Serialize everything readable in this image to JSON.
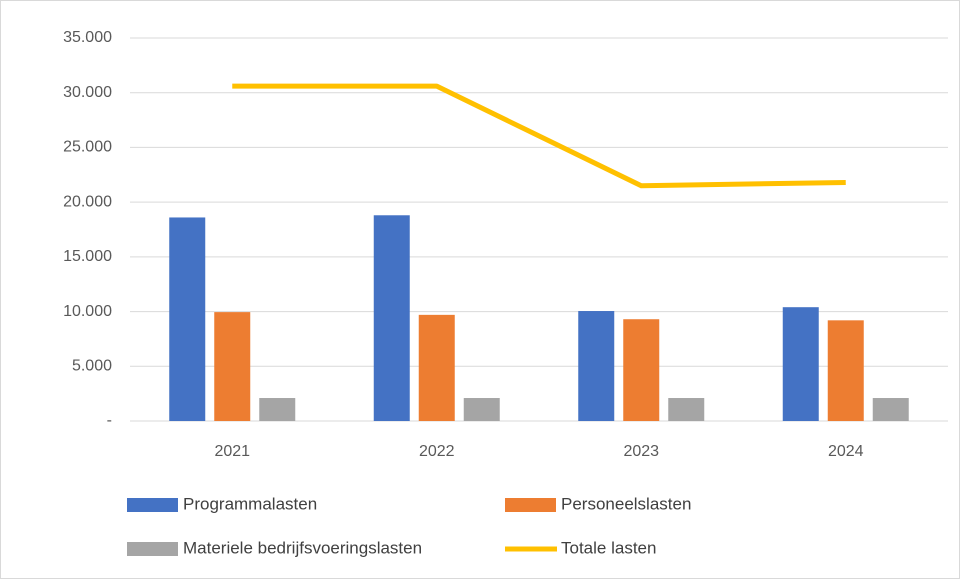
{
  "chart_data": {
    "type": "bar",
    "categories": [
      "2021",
      "2022",
      "2023",
      "2024"
    ],
    "series": [
      {
        "name": "Programmalasten",
        "color": "#4472c4",
        "type": "bar",
        "values": [
          18600,
          18800,
          10050,
          10400
        ]
      },
      {
        "name": "Personeelslasten",
        "color": "#ed7d31",
        "type": "bar",
        "values": [
          9950,
          9700,
          9300,
          9200
        ]
      },
      {
        "name": "Materiele bedrijfsvoeringslasten",
        "color": "#a5a5a5",
        "type": "bar",
        "values": [
          2100,
          2100,
          2100,
          2100
        ]
      },
      {
        "name": "Totale lasten",
        "color": "#ffc000",
        "type": "line",
        "values": [
          30600,
          30600,
          21500,
          21800
        ]
      }
    ],
    "ylim": [
      0,
      35000
    ],
    "yticks": [
      {
        "value": 0,
        "label": "-"
      },
      {
        "value": 5000,
        "label": "5.000"
      },
      {
        "value": 10000,
        "label": "10.000"
      },
      {
        "value": 15000,
        "label": "15.000"
      },
      {
        "value": 20000,
        "label": "20.000"
      },
      {
        "value": 25000,
        "label": "25.000"
      },
      {
        "value": 30000,
        "label": "30.000"
      },
      {
        "value": 35000,
        "label": "35.000"
      }
    ],
    "grid": true,
    "legend": "bottom"
  }
}
